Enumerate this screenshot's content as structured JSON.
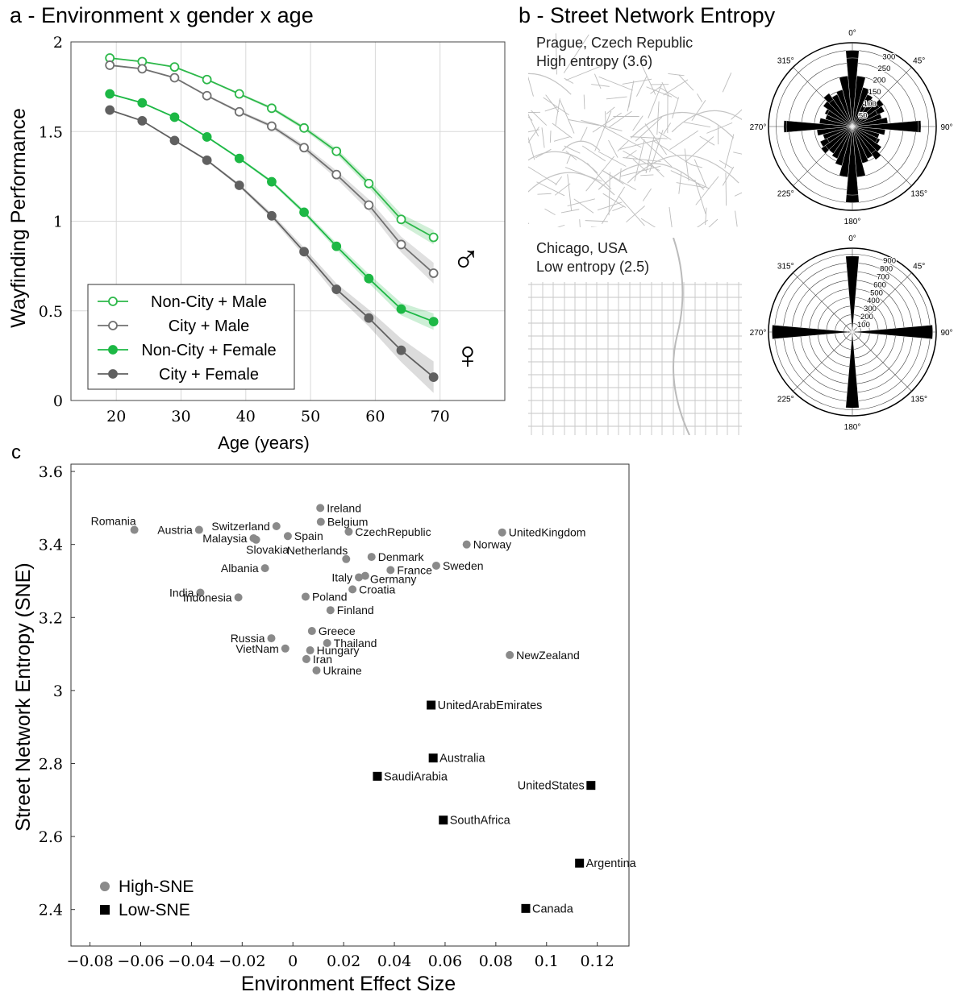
{
  "panels": {
    "a_title": "a - Environment x gender x age",
    "b_title": "b - Street Network Entropy",
    "c_title": "c"
  },
  "maps": [
    {
      "city": "Prague, Czech Republic",
      "entropy_label": "High entropy (3.6)"
    },
    {
      "city": "Chicago, USA",
      "entropy_label": "Low entropy (2.5)"
    }
  ],
  "symbols": {
    "male": "♂",
    "female": "♀"
  },
  "chart_data": [
    {
      "type": "line",
      "title": "",
      "xlabel": "Age (years)",
      "ylabel": "Wayfinding Performance",
      "xlim": [
        13,
        80
      ],
      "ylim": [
        0,
        2
      ],
      "xticks": [
        "20",
        "30",
        "40",
        "50",
        "60",
        "70"
      ],
      "yticks": [
        "0",
        "0.5",
        "1",
        "1.5",
        "2"
      ],
      "grid": true,
      "legend_position": "bottom-left",
      "x": [
        19,
        24,
        29,
        34,
        39,
        44,
        49,
        54,
        59,
        64,
        69
      ],
      "series": [
        {
          "name": "Non-City + Male",
          "color": "#2db84a",
          "marker": "open",
          "values": [
            1.91,
            1.89,
            1.86,
            1.79,
            1.71,
            1.63,
            1.52,
            1.39,
            1.21,
            1.01,
            0.91
          ]
        },
        {
          "name": "City + Male",
          "color": "#707070",
          "marker": "open",
          "values": [
            1.87,
            1.85,
            1.8,
            1.7,
            1.61,
            1.53,
            1.41,
            1.26,
            1.09,
            0.87,
            0.71
          ]
        },
        {
          "name": "Non-City + Female",
          "color": "#1db845",
          "marker": "filled",
          "values": [
            1.71,
            1.66,
            1.58,
            1.47,
            1.35,
            1.22,
            1.05,
            0.86,
            0.68,
            0.51,
            0.44
          ]
        },
        {
          "name": "City + Female",
          "color": "#606060",
          "marker": "filled",
          "values": [
            1.62,
            1.56,
            1.45,
            1.34,
            1.2,
            1.03,
            0.83,
            0.62,
            0.46,
            0.28,
            0.13
          ]
        }
      ]
    },
    {
      "type": "polar_histogram",
      "city": "Prague",
      "angle_labels": [
        "0°",
        "45°",
        "90°",
        "135°",
        "180°",
        "225°",
        "270°",
        "315°"
      ],
      "radial_ticks": [
        "50",
        "100",
        "150",
        "200",
        "250",
        "300"
      ],
      "rmax": 330,
      "bin_degrees": 10,
      "values": [
        300,
        180,
        150,
        120,
        130,
        150,
        140,
        110,
        100,
        270,
        120,
        100,
        120,
        140,
        160,
        130,
        150,
        200,
        270,
        200,
        160,
        140,
        130,
        130,
        110,
        120,
        140,
        260,
        130,
        110,
        110,
        140,
        130,
        140,
        150,
        200
      ]
    },
    {
      "type": "polar_histogram",
      "city": "Chicago",
      "angle_labels": [
        "0°",
        "45°",
        "90°",
        "135°",
        "180°",
        "225°",
        "270°",
        "315°"
      ],
      "radial_ticks": [
        "100",
        "200",
        "300",
        "400",
        "500",
        "600",
        "700",
        "800",
        "900"
      ],
      "rmax": 970,
      "bin_degrees": 10,
      "values": [
        830,
        40,
        25,
        20,
        20,
        20,
        20,
        30,
        50,
        920,
        50,
        30,
        20,
        20,
        20,
        20,
        25,
        40,
        880,
        40,
        25,
        20,
        20,
        20,
        20,
        30,
        50,
        930,
        50,
        30,
        20,
        20,
        20,
        20,
        25,
        40
      ]
    },
    {
      "type": "scatter",
      "title": "",
      "xlabel": "Environment Effect Size",
      "ylabel": "Street Network Entropy (SNE)",
      "xlim": [
        -0.0875,
        0.1325
      ],
      "ylim": [
        2.3,
        3.62
      ],
      "xticks": [
        "−0.08",
        "−0.06",
        "−0.04",
        "−0.02",
        "0",
        "0.02",
        "0.04",
        "0.06",
        "0.08",
        "0.1",
        "0.12"
      ],
      "yticks": [
        "2.4",
        "2.6",
        "2.8",
        "3",
        "3.2",
        "3.4",
        "3.6"
      ],
      "grid": false,
      "legend_position": "bottom-left",
      "legend": [
        {
          "name": "High-SNE",
          "marker": "circle"
        },
        {
          "name": "Low-SNE",
          "marker": "square"
        }
      ],
      "points": [
        {
          "label": "Romania",
          "x": -0.0625,
          "y": 3.44,
          "group": "High-SNE",
          "label_side": "above-left"
        },
        {
          "label": "Austria",
          "x": -0.037,
          "y": 3.44,
          "group": "High-SNE",
          "label_side": "left"
        },
        {
          "label": "Switzerland",
          "x": -0.0065,
          "y": 3.45,
          "group": "High-SNE",
          "label_side": "left"
        },
        {
          "label": "Malaysia",
          "x": -0.0155,
          "y": 3.417,
          "group": "High-SNE",
          "label_side": "left"
        },
        {
          "label": "Slovakia",
          "x": -0.0145,
          "y": 3.413,
          "group": "High-SNE",
          "label_side": "below"
        },
        {
          "label": "Spain",
          "x": -0.002,
          "y": 3.423,
          "group": "High-SNE",
          "label_side": "right"
        },
        {
          "label": "Ireland",
          "x": 0.0108,
          "y": 3.5,
          "group": "High-SNE",
          "label_side": "right"
        },
        {
          "label": "Belgium",
          "x": 0.011,
          "y": 3.462,
          "group": "High-SNE",
          "label_side": "right"
        },
        {
          "label": "CzechRepublic",
          "x": 0.022,
          "y": 3.435,
          "group": "High-SNE",
          "label_side": "right"
        },
        {
          "label": "Netherlands",
          "x": 0.021,
          "y": 3.36,
          "group": "High-SNE",
          "label_side": "above-left"
        },
        {
          "label": "Denmark",
          "x": 0.031,
          "y": 3.366,
          "group": "High-SNE",
          "label_side": "right"
        },
        {
          "label": "France",
          "x": 0.0385,
          "y": 3.33,
          "group": "High-SNE",
          "label_side": "right"
        },
        {
          "label": "Sweden",
          "x": 0.0565,
          "y": 3.342,
          "group": "High-SNE",
          "label_side": "right"
        },
        {
          "label": "UnitedKingdom",
          "x": 0.0825,
          "y": 3.433,
          "group": "High-SNE",
          "label_side": "right"
        },
        {
          "label": "Norway",
          "x": 0.0685,
          "y": 3.4,
          "group": "High-SNE",
          "label_side": "right"
        },
        {
          "label": "Albania",
          "x": -0.011,
          "y": 3.335,
          "group": "High-SNE",
          "label_side": "left"
        },
        {
          "label": "Italy",
          "x": 0.026,
          "y": 3.31,
          "group": "High-SNE",
          "label_side": "left"
        },
        {
          "label": "Germany",
          "x": 0.0285,
          "y": 3.314,
          "group": "High-SNE",
          "label_side": "below-right"
        },
        {
          "label": "Croatia",
          "x": 0.0235,
          "y": 3.277,
          "group": "High-SNE",
          "label_side": "right"
        },
        {
          "label": "India",
          "x": -0.0365,
          "y": 3.268,
          "group": "High-SNE",
          "label_side": "left"
        },
        {
          "label": "Indonesia",
          "x": -0.0215,
          "y": 3.255,
          "group": "High-SNE",
          "label_side": "left"
        },
        {
          "label": "Poland",
          "x": 0.005,
          "y": 3.257,
          "group": "High-SNE",
          "label_side": "right"
        },
        {
          "label": "Finland",
          "x": 0.0148,
          "y": 3.22,
          "group": "High-SNE",
          "label_side": "right"
        },
        {
          "label": "Russia",
          "x": -0.0085,
          "y": 3.143,
          "group": "High-SNE",
          "label_side": "left"
        },
        {
          "label": "VietNam",
          "x": -0.003,
          "y": 3.115,
          "group": "High-SNE",
          "label_side": "left"
        },
        {
          "label": "Greece",
          "x": 0.0075,
          "y": 3.163,
          "group": "High-SNE",
          "label_side": "right"
        },
        {
          "label": "Thailand",
          "x": 0.0135,
          "y": 3.13,
          "group": "High-SNE",
          "label_side": "right"
        },
        {
          "label": "Hungary",
          "x": 0.0068,
          "y": 3.11,
          "group": "High-SNE",
          "label_side": "right"
        },
        {
          "label": "Iran",
          "x": 0.0053,
          "y": 3.086,
          "group": "High-SNE",
          "label_side": "right"
        },
        {
          "label": "Ukraine",
          "x": 0.0093,
          "y": 3.055,
          "group": "High-SNE",
          "label_side": "right"
        },
        {
          "label": "NewZealand",
          "x": 0.0855,
          "y": 3.097,
          "group": "High-SNE",
          "label_side": "right"
        },
        {
          "label": "UnitedArabEmirates",
          "x": 0.0545,
          "y": 2.96,
          "group": "Low-SNE",
          "label_side": "right"
        },
        {
          "label": "Australia",
          "x": 0.0553,
          "y": 2.815,
          "group": "Low-SNE",
          "label_side": "right"
        },
        {
          "label": "SaudiArabia",
          "x": 0.0333,
          "y": 2.765,
          "group": "Low-SNE",
          "label_side": "right"
        },
        {
          "label": "UnitedStates",
          "x": 0.1175,
          "y": 2.74,
          "group": "Low-SNE",
          "label_side": "left"
        },
        {
          "label": "SouthAfrica",
          "x": 0.0593,
          "y": 2.645,
          "group": "Low-SNE",
          "label_side": "right"
        },
        {
          "label": "Argentina",
          "x": 0.113,
          "y": 2.527,
          "group": "Low-SNE",
          "label_side": "right"
        },
        {
          "label": "Canada",
          "x": 0.0918,
          "y": 2.403,
          "group": "Low-SNE",
          "label_side": "right"
        }
      ]
    }
  ]
}
